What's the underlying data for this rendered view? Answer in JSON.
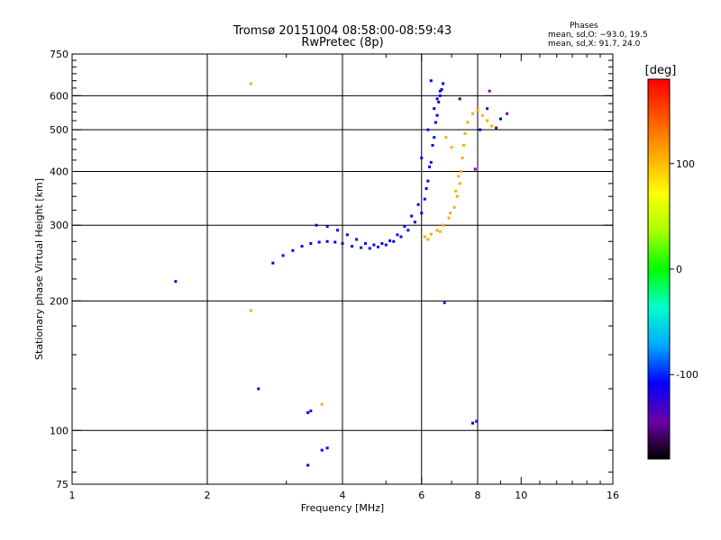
{
  "header": {
    "title_line1": "Tromsø 20151004 08:58:00-08:59:43",
    "title_line2": "RwPretec (8p)"
  },
  "phases_box": {
    "heading": "Phases",
    "o_mode": "mean, sd,O: −93.0, 19.5",
    "x_mode": "mean, sd,X:  91.7, 24.0"
  },
  "chart_data": {
    "type": "scatter",
    "xlabel": "Frequency [MHz]",
    "ylabel": "Stationary phase Virtual Height [km]",
    "xscale": "log",
    "yscale": "log",
    "xlim": [
      1,
      16
    ],
    "ylim": [
      75,
      750
    ],
    "xticks": [
      1,
      2,
      4,
      6,
      8,
      10,
      16
    ],
    "yticks": [
      75,
      100,
      200,
      300,
      400,
      500,
      600,
      750
    ],
    "grid_x": [
      2,
      4,
      6,
      8
    ],
    "grid_y": [
      100,
      200,
      300,
      400,
      500,
      600
    ],
    "grid": true,
    "colorbar": {
      "label": "[deg]",
      "range": [
        -180,
        180
      ],
      "ticks": [
        100,
        0,
        -100
      ],
      "colors": [
        "#000000",
        "#6a00a8",
        "#0000ff",
        "#00aaff",
        "#00ffcc",
        "#00ff00",
        "#aaff00",
        "#ffff00",
        "#ffaa00",
        "#ff5500",
        "#ff0000"
      ]
    },
    "series": [
      {
        "color_hint": "blue (O-mode, phase near -93 deg)",
        "x": [
          2.8,
          2.95,
          3.1,
          3.25,
          3.4,
          3.55,
          3.7,
          3.85,
          4.0,
          4.2,
          4.4,
          4.6,
          4.8,
          5.0,
          5.2,
          5.4,
          5.6,
          5.8,
          6.0,
          6.1,
          6.2,
          6.3,
          6.4,
          6.5,
          6.6,
          6.7,
          3.5,
          3.7,
          3.9,
          4.1,
          4.3,
          4.5,
          4.7,
          4.9,
          5.1,
          5.3,
          5.5,
          5.7,
          5.9,
          6.15,
          6.25,
          6.35,
          6.45,
          6.55,
          6.65,
          6.0,
          6.2,
          6.4,
          6.6,
          6.3,
          6.5,
          1.7,
          2.6,
          3.35,
          3.4,
          3.6,
          3.7,
          3.35,
          7.8,
          7.95
        ],
        "y": [
          245,
          255,
          262,
          268,
          272,
          274,
          275,
          274,
          272,
          268,
          266,
          265,
          267,
          270,
          275,
          282,
          292,
          305,
          320,
          345,
          380,
          420,
          480,
          540,
          600,
          640,
          300,
          298,
          292,
          285,
          278,
          272,
          270,
          272,
          276,
          285,
          298,
          315,
          335,
          365,
          410,
          460,
          520,
          580,
          620,
          430,
          500,
          560,
          615,
          650,
          590,
          222,
          125,
          110,
          111,
          90,
          91,
          83,
          104,
          105
        ]
      },
      {
        "color_hint": "yellow/orange (X-mode, phase near +92 deg)",
        "x": [
          6.1,
          6.3,
          6.5,
          6.7,
          6.9,
          7.1,
          7.2,
          7.3,
          7.35,
          7.4,
          7.45,
          7.5,
          7.6,
          7.8,
          8.0,
          8.2,
          8.4,
          8.6,
          6.2,
          6.6,
          6.95,
          7.15,
          7.25,
          6.8,
          7.0,
          2.5,
          2.5,
          3.6
        ],
        "y": [
          282,
          286,
          292,
          300,
          312,
          330,
          350,
          375,
          400,
          430,
          460,
          490,
          520,
          545,
          555,
          540,
          525,
          510,
          278,
          290,
          320,
          360,
          390,
          480,
          455,
          640,
          190,
          115
        ]
      },
      {
        "color_hint": "purple/dark (sparse outliers)",
        "x": [
          8.5,
          9.0,
          9.3,
          8.8,
          7.3,
          7.9,
          8.1,
          6.75,
          8.4
        ],
        "y": [
          615,
          530,
          545,
          505,
          590,
          405,
          500,
          198,
          560
        ]
      }
    ]
  }
}
